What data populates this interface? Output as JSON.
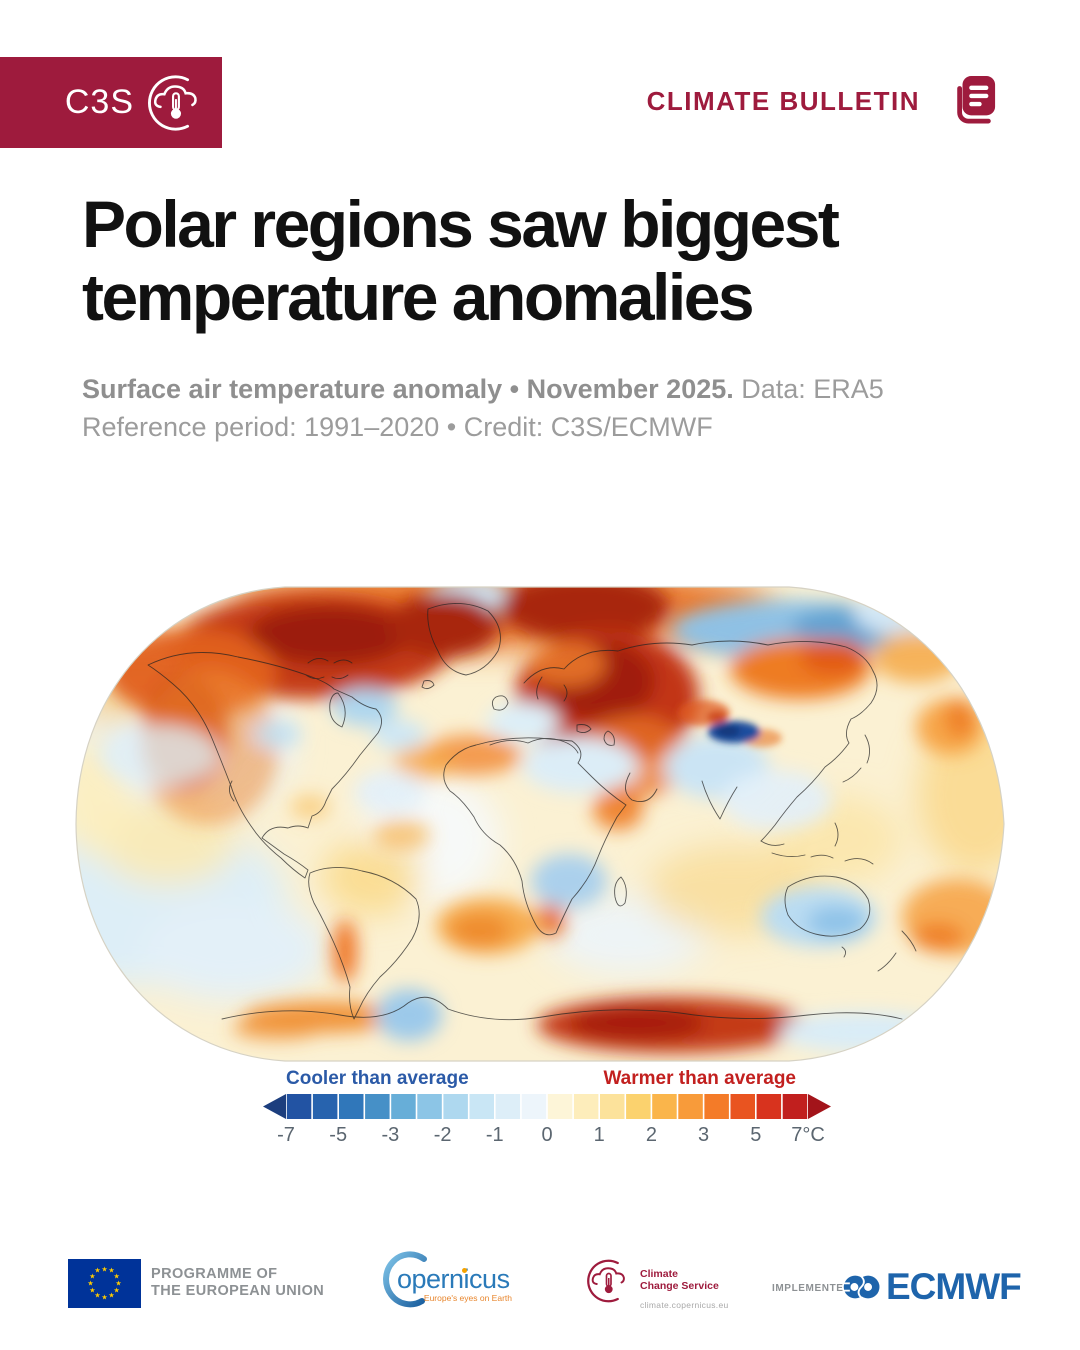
{
  "colors": {
    "accent": "#9e1b3d",
    "subtitle_gray": "#9c9c9c",
    "cool_label": "#2b5aa7",
    "warm_label": "#c2201f",
    "tick_gray": "#5b6670",
    "eu_blue": "#003399",
    "star_yellow": "#ffcc00",
    "cop_blue": "#2a7ab9",
    "cop_orange": "#e8862d",
    "ecmwf_blue": "#1e64ab",
    "footer_gray": "#8d9194"
  },
  "header": {
    "logo_text": "C3S",
    "bulletin_label": "CLIMATE BULLETIN"
  },
  "title": {
    "line1": "Polar regions saw biggest",
    "line2": "temperature anomalies"
  },
  "subtitle": {
    "lead_bold": "Surface air temperature anomaly • November 2025.",
    "lead_regular": " Data: ERA5",
    "line2": "Reference period: 1991–2020 • Credit: C3S/ECMWF"
  },
  "chart_data": {
    "type": "heatmap",
    "title": "Surface air temperature anomaly, November 2025",
    "projection": "Robinson world map",
    "units": "°C",
    "reference_period": "1991–2020",
    "scale_breakpoints": [
      -7,
      -6,
      -5,
      -4,
      -3,
      -2.5,
      -2,
      -1.5,
      -1,
      -0.5,
      0,
      0.5,
      1,
      1.5,
      2,
      2.5,
      3,
      4,
      5,
      6,
      7
    ],
    "notable_regions": [
      {
        "region": "Canadian Arctic, Greenland and Arctic Ocean",
        "anomaly": "strongly above average (+5 to +7°C)"
      },
      {
        "region": "Western / northwestern North America",
        "anomaly": "well above average"
      },
      {
        "region": "Eastern Europe and western Russia",
        "anomaly": "strongly above average"
      },
      {
        "region": "Central and eastern Siberia",
        "anomaly": "below average"
      },
      {
        "region": "Tibetan Plateau",
        "anomaly": "locally far below average"
      },
      {
        "region": "Arabian Peninsula and India",
        "anomaly": "slightly below average"
      },
      {
        "region": "Southern Africa interior",
        "anomaly": "below average"
      },
      {
        "region": "Southern Australia",
        "anomaly": "below average"
      },
      {
        "region": "New Zealand and nearby ocean",
        "anomaly": "above average"
      },
      {
        "region": "East Antarctica coast",
        "anomaly": "strongly above average"
      }
    ]
  },
  "legend": {
    "cool_label": "Cooler than average",
    "warm_label": "Warmer than average",
    "ticks": [
      "-7",
      "-5",
      "-3",
      "-2",
      "-1",
      "0",
      "1",
      "2",
      "3",
      "5",
      "7°C"
    ],
    "segment_colors": [
      "#2253a3",
      "#2763ae",
      "#3077ba",
      "#4690c7",
      "#67aed8",
      "#8cc5e6",
      "#aed8ef",
      "#c9e6f5",
      "#ddeef8",
      "#edf5fb",
      "#fdf5d8",
      "#fdedbb",
      "#fce29b",
      "#fbd26e",
      "#fab54b",
      "#f89b3a",
      "#f47b28",
      "#e95420",
      "#d8331e",
      "#c11f1e"
    ],
    "left_arrow": "#1c3e7e",
    "right_arrow": "#a3141a"
  },
  "footer": {
    "eu": {
      "line1": "PROGRAMME OF",
      "line2": "THE EUROPEAN UNION"
    },
    "copernicus": {
      "word": "opernicus",
      "tagline": "Europe's eyes on Earth"
    },
    "c3s": {
      "line1": "Climate",
      "line2": "Change Service",
      "url": "climate.copernicus.eu"
    },
    "ecmwf": {
      "implemented_by": "IMPLEMENTED BY",
      "name": "ECMWF"
    }
  }
}
